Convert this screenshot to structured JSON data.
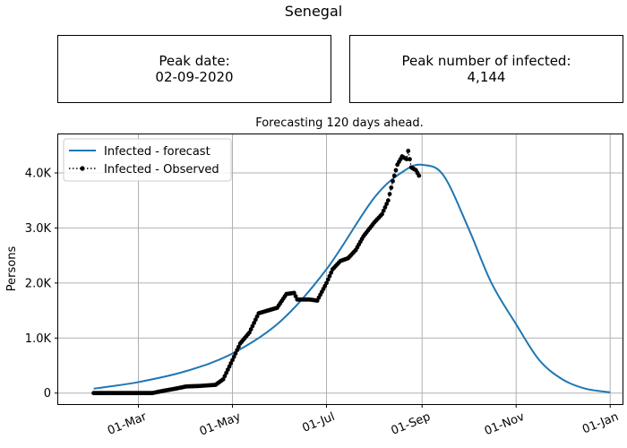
{
  "page": {
    "title": "Senegal",
    "peak_date_label": "Peak date:",
    "peak_date_value": "02-09-2020",
    "peak_number_label": "Peak number of infected:",
    "peak_number_value": "4,144"
  },
  "chart_data": {
    "type": "line",
    "title": "Forecasting 120 days ahead.",
    "ylabel": "Persons",
    "xlabel": "",
    "grid": true,
    "legend_position": "top-left",
    "x_axis": {
      "start_date": "2020-01-09",
      "end_date": "2021-01-09",
      "ticks": [
        {
          "date": "2020-03-01",
          "label": "01-Mar"
        },
        {
          "date": "2020-05-01",
          "label": "01-May"
        },
        {
          "date": "2020-07-01",
          "label": "01-Jul"
        },
        {
          "date": "2020-09-01",
          "label": "01-Sep"
        },
        {
          "date": "2020-11-01",
          "label": "01-Nov"
        },
        {
          "date": "2021-01-01",
          "label": "01-Jan"
        }
      ]
    },
    "y_axis": {
      "ylim": [
        -200,
        4700
      ],
      "ticks": [
        {
          "value": 0,
          "label": "0"
        },
        {
          "value": 1000,
          "label": "1.0K"
        },
        {
          "value": 2000,
          "label": "2.0K"
        },
        {
          "value": 3000,
          "label": "3.0K"
        },
        {
          "value": 4000,
          "label": "4.0K"
        }
      ]
    },
    "series": [
      {
        "name": "Infected - forecast",
        "color": "#1f77b4",
        "style": "solid",
        "points": [
          [
            "2020-02-01",
            80
          ],
          [
            "2020-03-01",
            200
          ],
          [
            "2020-04-01",
            400
          ],
          [
            "2020-05-01",
            720
          ],
          [
            "2020-06-01",
            1300
          ],
          [
            "2020-07-01",
            2250
          ],
          [
            "2020-08-01",
            3550
          ],
          [
            "2020-08-21",
            4050
          ],
          [
            "2020-09-02",
            4144
          ],
          [
            "2020-09-15",
            3950
          ],
          [
            "2020-10-01",
            3000
          ],
          [
            "2020-10-16",
            2000
          ],
          [
            "2020-11-01",
            1250
          ],
          [
            "2020-11-16",
            600
          ],
          [
            "2020-12-01",
            250
          ],
          [
            "2020-12-16",
            80
          ],
          [
            "2021-01-01",
            15
          ]
        ]
      },
      {
        "name": "Infected - Observed",
        "color": "#000000",
        "style": "dotted-marker",
        "points": [
          [
            "2020-02-01",
            0
          ],
          [
            "2020-02-15",
            0
          ],
          [
            "2020-03-01",
            0
          ],
          [
            "2020-03-10",
            0
          ],
          [
            "2020-03-17",
            40
          ],
          [
            "2020-03-25",
            80
          ],
          [
            "2020-04-01",
            120
          ],
          [
            "2020-04-10",
            130
          ],
          [
            "2020-04-20",
            150
          ],
          [
            "2020-04-25",
            250
          ],
          [
            "2020-05-01",
            600
          ],
          [
            "2020-05-06",
            900
          ],
          [
            "2020-05-12",
            1100
          ],
          [
            "2020-05-18",
            1450
          ],
          [
            "2020-05-24",
            1500
          ],
          [
            "2020-05-30",
            1550
          ],
          [
            "2020-06-05",
            1800
          ],
          [
            "2020-06-10",
            1820
          ],
          [
            "2020-06-12",
            1700
          ],
          [
            "2020-06-20",
            1700
          ],
          [
            "2020-06-25",
            1680
          ],
          [
            "2020-07-01",
            2000
          ],
          [
            "2020-07-05",
            2250
          ],
          [
            "2020-07-10",
            2400
          ],
          [
            "2020-07-15",
            2450
          ],
          [
            "2020-07-20",
            2600
          ],
          [
            "2020-07-25",
            2850
          ],
          [
            "2020-08-01",
            3100
          ],
          [
            "2020-08-06",
            3250
          ],
          [
            "2020-08-10",
            3500
          ],
          [
            "2020-08-13",
            3850
          ],
          [
            "2020-08-16",
            4150
          ],
          [
            "2020-08-19",
            4300
          ],
          [
            "2020-08-22",
            4250
          ],
          [
            "2020-08-23",
            4400
          ],
          [
            "2020-08-25",
            4100
          ],
          [
            "2020-08-28",
            4050
          ],
          [
            "2020-08-30",
            3950
          ]
        ]
      }
    ]
  }
}
